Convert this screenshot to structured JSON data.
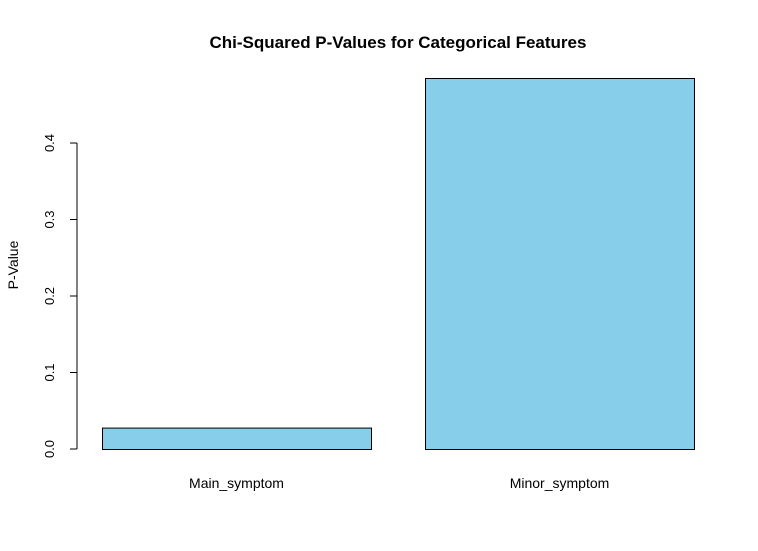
{
  "chart_data": {
    "type": "bar",
    "title": "Chi-Squared P-Values for Categorical Features",
    "xlabel": "",
    "ylabel": "P-Value",
    "categories": [
      "Main_symptom",
      "Minor_symptom"
    ],
    "values": [
      0.028,
      0.485
    ],
    "ylim": [
      0,
      0.485
    ],
    "yticks": [
      0.0,
      0.1,
      0.2,
      0.3,
      0.4
    ],
    "ytick_labels": [
      "0.0",
      "0.1",
      "0.2",
      "0.3",
      "0.4"
    ],
    "bar_color": "#87CEEB",
    "bar_border": "#000000",
    "grid": false,
    "legend": "none"
  }
}
